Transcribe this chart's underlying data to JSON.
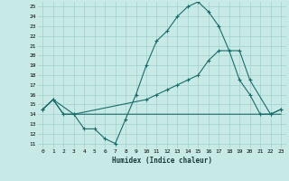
{
  "xlabel": "Humidex (Indice chaleur)",
  "bg_color": "#c8eae6",
  "grid_color": "#a0d0cc",
  "line_color": "#1a6b6b",
  "xlim": [
    -0.5,
    23.5
  ],
  "ylim": [
    10.5,
    25.5
  ],
  "xticks": [
    0,
    1,
    2,
    3,
    4,
    5,
    6,
    7,
    8,
    9,
    10,
    11,
    12,
    13,
    14,
    15,
    16,
    17,
    18,
    19,
    20,
    21,
    22,
    23
  ],
  "yticks": [
    11,
    12,
    13,
    14,
    15,
    16,
    17,
    18,
    19,
    20,
    21,
    22,
    23,
    24,
    25
  ],
  "line1_x": [
    0,
    1,
    2,
    3,
    4,
    5,
    6,
    7,
    8,
    9,
    10,
    11,
    12,
    13,
    14,
    15,
    16,
    17,
    18,
    19,
    20,
    21,
    22,
    23
  ],
  "line1_y": [
    14.5,
    15.5,
    14.0,
    14.0,
    12.5,
    12.5,
    11.5,
    11.0,
    13.5,
    16.0,
    19.0,
    21.5,
    22.5,
    24.0,
    25.0,
    25.5,
    24.5,
    23.0,
    20.5,
    17.5,
    16.0,
    14.0,
    14.0,
    14.5
  ],
  "line2_x": [
    0,
    1,
    3,
    10,
    11,
    12,
    13,
    14,
    15,
    16,
    17,
    19,
    20,
    22,
    23
  ],
  "line2_y": [
    14.5,
    15.5,
    14.0,
    15.5,
    16.0,
    16.5,
    17.0,
    17.5,
    18.0,
    19.5,
    20.5,
    20.5,
    17.5,
    14.0,
    14.5
  ],
  "line3_x": [
    0,
    1,
    2,
    3,
    9,
    14,
    22,
    23
  ],
  "line3_y": [
    14.5,
    15.5,
    14.0,
    14.0,
    14.0,
    14.0,
    14.0,
    14.0
  ]
}
